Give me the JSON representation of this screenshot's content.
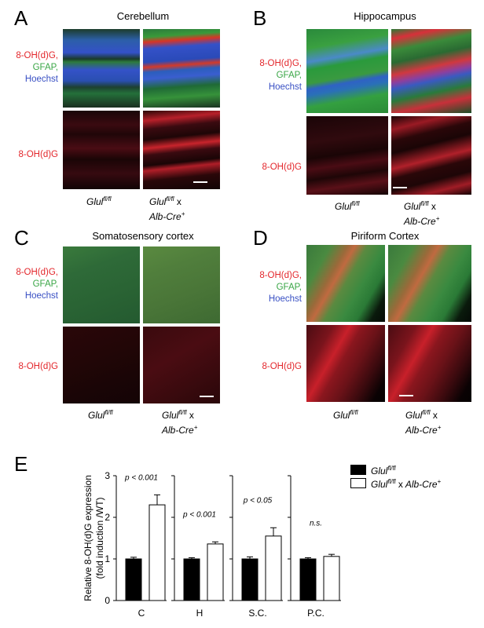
{
  "panels": {
    "A": {
      "letter": "A",
      "title": "Cerebellum"
    },
    "B": {
      "letter": "B",
      "title": "Hippocampus"
    },
    "C": {
      "letter": "C",
      "title": "Somatosensory cortex"
    },
    "D": {
      "letter": "D",
      "title": "Piriform Cortex"
    },
    "E": {
      "letter": "E"
    }
  },
  "channels": {
    "marker": "8-OH(d)G,",
    "gfap": "GFAP,",
    "hoechst": "Hoechst",
    "marker_only": "8-OH(d)G"
  },
  "genotypes": {
    "control_base": "Glul",
    "sup": "fl/fl",
    "x": " x",
    "cre": "Alb-Cre",
    "cre_sup": "+"
  },
  "colors": {
    "marker": "#e3262b",
    "gfap": "#3aa646",
    "hoechst": "#3950c4",
    "control_bar": "#000000",
    "ko_bar": "#ffffff"
  },
  "chart_data": {
    "type": "bar",
    "ylabel": "Relative 8-OH(d)G expression\n(fold induction /WT)",
    "ylim": [
      0,
      3
    ],
    "yticks": [
      0,
      1,
      2,
      3
    ],
    "categories": [
      "C",
      "H",
      "S.C.",
      "P.C."
    ],
    "series": [
      {
        "name": "Glul fl/fl",
        "values": [
          1.0,
          1.0,
          1.0,
          1.0
        ],
        "errors": [
          0.04,
          0.03,
          0.05,
          0.03
        ]
      },
      {
        "name": "Glul fl/fl x Alb-Cre+",
        "values": [
          2.3,
          1.36,
          1.55,
          1.06
        ],
        "errors": [
          0.24,
          0.05,
          0.2,
          0.05
        ]
      }
    ],
    "annotations": [
      "p < 0.001",
      "p < 0.001",
      "p < 0.05",
      "n.s."
    ],
    "legend_position": "top-right"
  }
}
